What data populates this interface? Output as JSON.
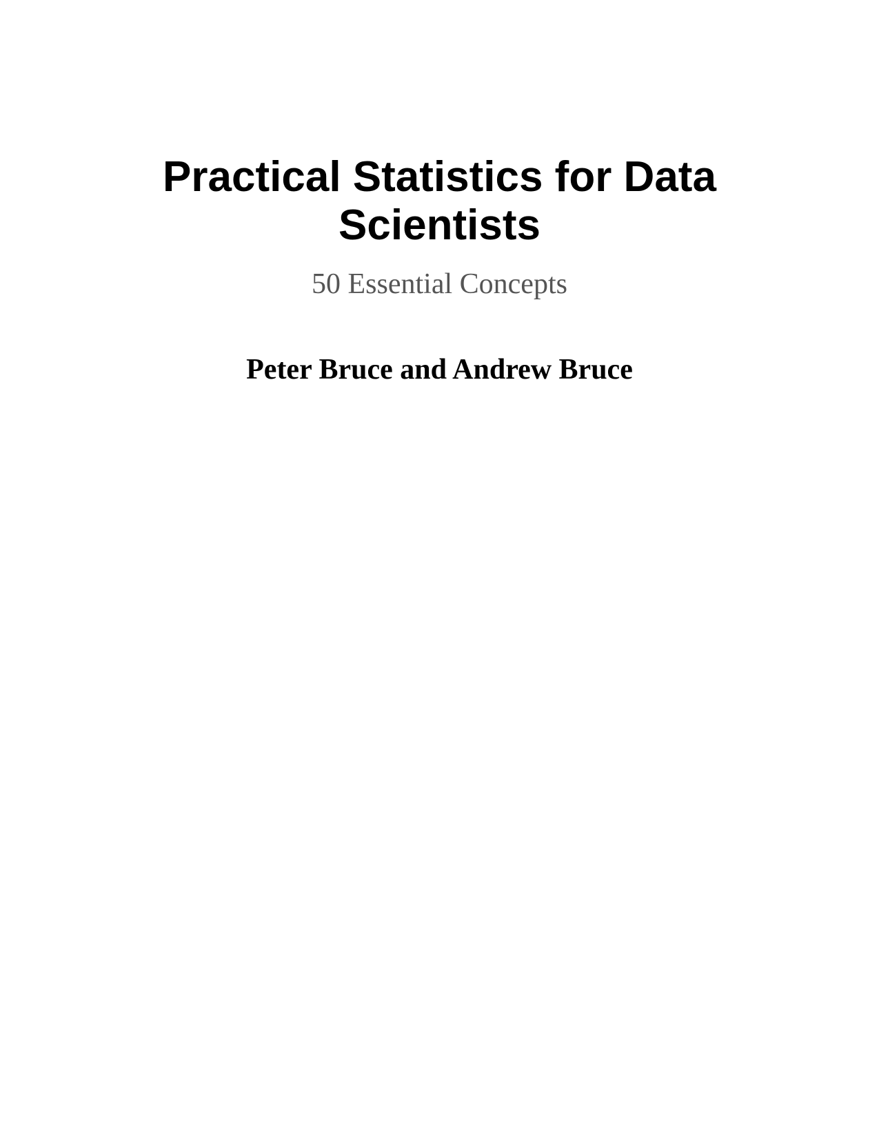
{
  "document": {
    "title_line1": "Practical Statistics for Data",
    "title_line2": "Scientists",
    "subtitle": "50 Essential Concepts",
    "authors": "Peter Bruce and Andrew Bruce"
  },
  "colors": {
    "title": "#000000",
    "subtitle": "#555555",
    "authors": "#000000",
    "background": "#ffffff"
  }
}
